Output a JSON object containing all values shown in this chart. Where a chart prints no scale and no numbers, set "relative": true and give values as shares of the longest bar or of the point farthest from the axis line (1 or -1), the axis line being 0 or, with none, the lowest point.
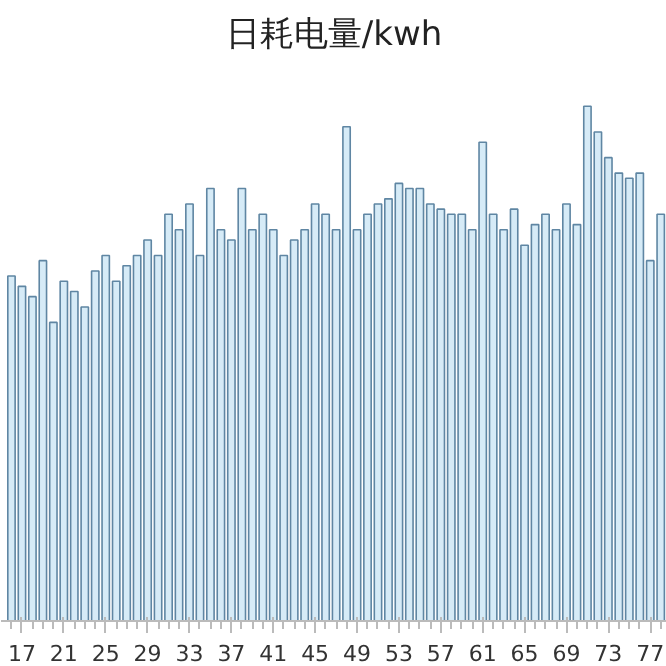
{
  "chart_data": {
    "type": "bar",
    "title": "日耗电量/kwh",
    "relative": true,
    "color": "#d6ebf7",
    "categories": [
      null,
      "17",
      null,
      null,
      null,
      "21",
      null,
      null,
      null,
      "25",
      null,
      null,
      null,
      "29",
      null,
      null,
      null,
      "33",
      null,
      null,
      null,
      "37",
      null,
      null,
      null,
      "41",
      null,
      null,
      null,
      "45",
      null,
      null,
      null,
      "49",
      null,
      null,
      null,
      "53",
      null,
      null,
      null,
      "57",
      null,
      null,
      null,
      "61",
      null,
      null,
      null,
      "65",
      null,
      null,
      null,
      "69",
      null,
      null,
      null,
      "73",
      null,
      null,
      null,
      "77",
      null
    ],
    "values": [
      0.67,
      0.65,
      0.63,
      0.7,
      0.58,
      0.66,
      0.64,
      0.61,
      0.68,
      0.71,
      0.66,
      0.69,
      0.71,
      0.74,
      0.71,
      0.79,
      0.76,
      0.81,
      0.71,
      0.84,
      0.76,
      0.74,
      0.84,
      0.76,
      0.79,
      0.76,
      0.71,
      0.74,
      0.76,
      0.81,
      0.79,
      0.76,
      0.96,
      0.76,
      0.79,
      0.81,
      0.82,
      0.85,
      0.84,
      0.84,
      0.81,
      0.8,
      0.79,
      0.79,
      0.76,
      0.93,
      0.79,
      0.76,
      0.8,
      0.73,
      0.77,
      0.79,
      0.76,
      0.81,
      0.77,
      1.0,
      0.95,
      0.9,
      0.87,
      0.86,
      0.87,
      0.7,
      0.79
    ]
  }
}
